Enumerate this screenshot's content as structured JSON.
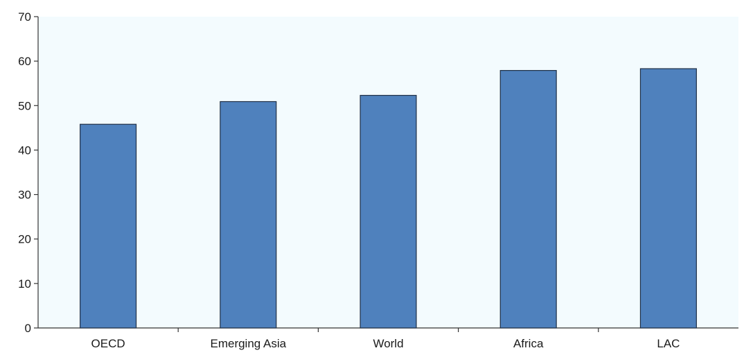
{
  "chart_data": {
    "type": "bar",
    "title": "",
    "xlabel": "",
    "ylabel": "",
    "categories": [
      "OECD",
      "Emerging Asia",
      "World",
      "Africa",
      "LAC"
    ],
    "values": [
      45.8,
      50.9,
      52.3,
      57.9,
      58.3
    ],
    "ylim": [
      0,
      70
    ],
    "yticks": [
      0,
      10,
      20,
      30,
      40,
      50,
      60,
      70
    ],
    "grid": false,
    "legend": "none",
    "colors": {
      "bar_fill": "#4f81bd",
      "bar_stroke": "#1f2f45",
      "plot_background": "#f3fbfe",
      "axis": "#333333"
    }
  }
}
